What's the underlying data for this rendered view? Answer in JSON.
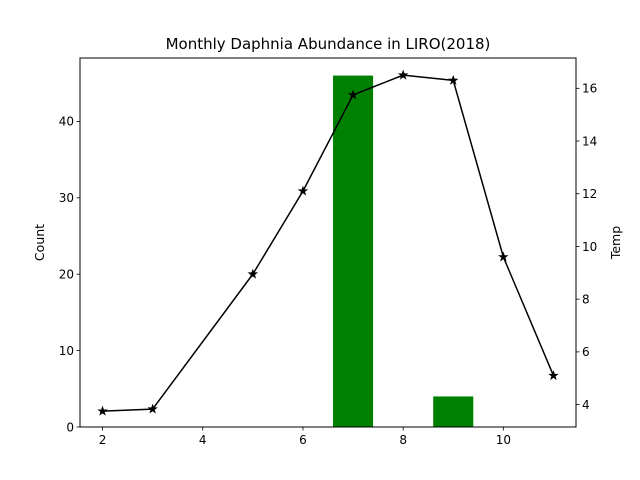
{
  "chart_data": {
    "type": "bar+line",
    "title": "Monthly Daphnia Abundance in LIRO(2018)",
    "xlabel": "",
    "ylabel": "Count",
    "y2label": "Temp",
    "xlim": [
      1.55,
      11.45
    ],
    "ylim": [
      0,
      48.3
    ],
    "y2lim": [
      3.15,
      17.15
    ],
    "xticks": [
      2,
      4,
      6,
      8,
      10
    ],
    "yticks": [
      0,
      10,
      20,
      30,
      40
    ],
    "y2ticks": [
      4,
      6,
      8,
      10,
      12,
      14,
      16
    ],
    "grid": false,
    "bars": {
      "name": "Count",
      "color": "#008000",
      "width": 0.8,
      "x": [
        7,
        9
      ],
      "values": [
        46,
        4
      ]
    },
    "line": {
      "name": "Temp",
      "color": "#000000",
      "marker": "star",
      "x": [
        2,
        3,
        5,
        6,
        7,
        8,
        9,
        10,
        11
      ],
      "values": [
        3.75,
        3.83,
        8.95,
        12.1,
        15.75,
        16.5,
        16.3,
        9.6,
        5.1
      ]
    }
  }
}
